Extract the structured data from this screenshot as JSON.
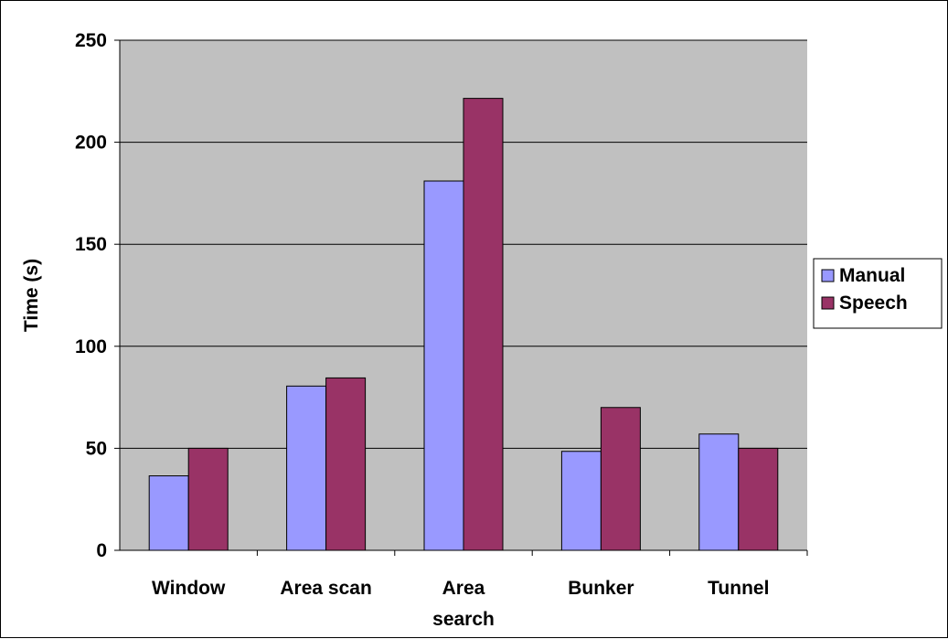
{
  "chart_data": {
    "type": "bar",
    "title": "",
    "xlabel": "",
    "ylabel": "Time (s)",
    "ylim": [
      0,
      250
    ],
    "yticks": [
      0,
      50,
      100,
      150,
      200,
      250
    ],
    "grid": true,
    "legend_position": "right",
    "plot_background": "#c0c0c0",
    "categories": [
      [
        "Window"
      ],
      [
        "Area scan"
      ],
      [
        "Area",
        "search"
      ],
      [
        "Bunker"
      ],
      [
        "Tunnel"
      ]
    ],
    "series": [
      {
        "name": "Manual",
        "color": "#9999ff",
        "values": [
          36.5,
          80.5,
          181,
          48.5,
          57
        ]
      },
      {
        "name": "Speech",
        "color": "#993366",
        "values": [
          50,
          84.5,
          221.5,
          70,
          50
        ]
      }
    ]
  }
}
